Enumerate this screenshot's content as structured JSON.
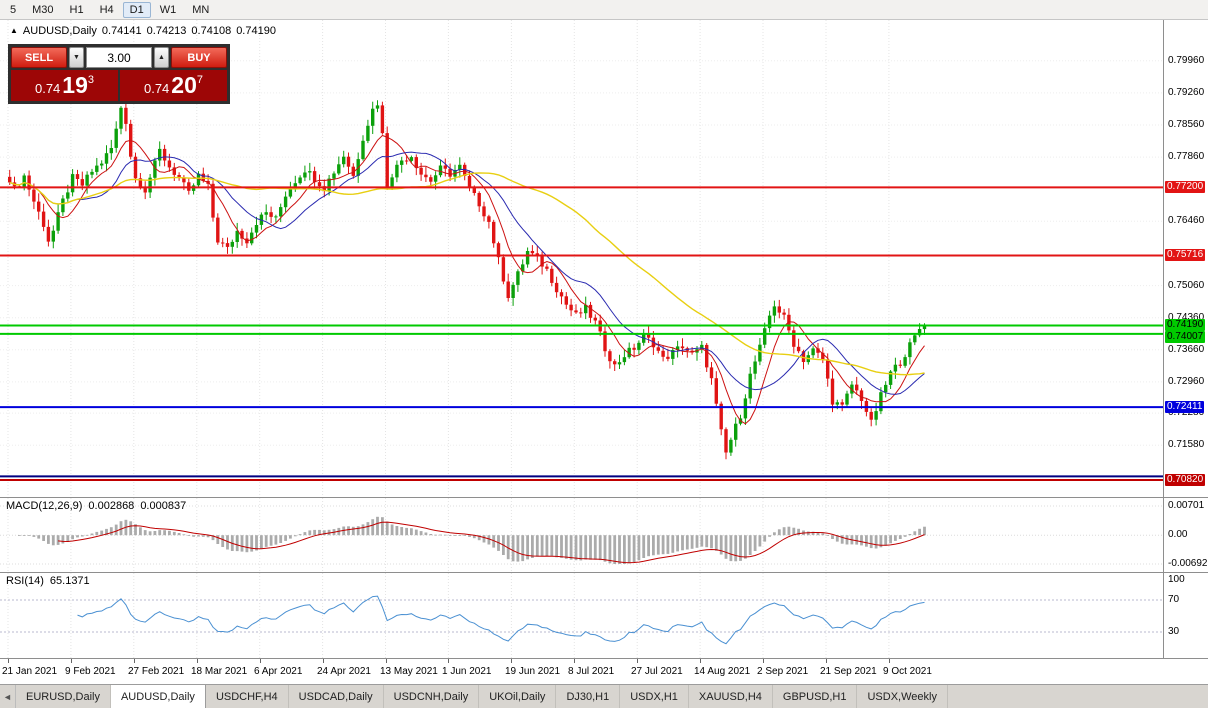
{
  "toolbar": {
    "timeframes": [
      "5",
      "M30",
      "H1",
      "H4",
      "D1",
      "W1",
      "MN"
    ],
    "active": "D1"
  },
  "header": {
    "symbol_icon": "▲",
    "symbol": "AUDUSD,Daily",
    "open": "0.74141",
    "high": "0.74213",
    "low": "0.74108",
    "close": "0.74190"
  },
  "trade_panel": {
    "sell_label": "SELL",
    "buy_label": "BUY",
    "volume": "3.00",
    "step_down_icon": "▼",
    "step_up_icon": "▲",
    "sell_price": {
      "big_prefix": "0.74",
      "big": "19",
      "sup": "3"
    },
    "buy_price": {
      "big_prefix": "0.74",
      "big": "20",
      "sup": "7"
    }
  },
  "chart_data": {
    "type": "candlestick",
    "symbol": "AUDUSD",
    "timeframe": "Daily",
    "current_ohlc": {
      "open": 0.74141,
      "high": 0.74213,
      "low": 0.74108,
      "close": 0.7419
    },
    "candle_count": 190,
    "view_high": 0.8085,
    "view_low": 0.7045,
    "up_color": "#0ba00b",
    "down_color": "#e01414",
    "price_anchors": [
      [
        0,
        0.774
      ],
      [
        1,
        0.7715
      ],
      [
        3,
        0.7745
      ],
      [
        5,
        0.769
      ],
      [
        7,
        0.764
      ],
      [
        8,
        0.7605
      ],
      [
        9,
        0.7625
      ],
      [
        11,
        0.769
      ],
      [
        13,
        0.774
      ],
      [
        15,
        0.7725
      ],
      [
        17,
        0.7755
      ],
      [
        19,
        0.7775
      ],
      [
        21,
        0.7805
      ],
      [
        22,
        0.7845
      ],
      [
        23,
        0.7895
      ],
      [
        24,
        0.7865
      ],
      [
        25,
        0.779
      ],
      [
        26,
        0.774
      ],
      [
        28,
        0.7715
      ],
      [
        30,
        0.777
      ],
      [
        31,
        0.78
      ],
      [
        33,
        0.7765
      ],
      [
        35,
        0.774
      ],
      [
        37,
        0.7705
      ],
      [
        39,
        0.7745
      ],
      [
        41,
        0.772
      ],
      [
        42,
        0.7655
      ],
      [
        43,
        0.7605
      ],
      [
        45,
        0.7585
      ],
      [
        47,
        0.7625
      ],
      [
        49,
        0.7605
      ],
      [
        51,
        0.7645
      ],
      [
        53,
        0.7665
      ],
      [
        55,
        0.765
      ],
      [
        57,
        0.7705
      ],
      [
        59,
        0.7735
      ],
      [
        61,
        0.776
      ],
      [
        63,
        0.774
      ],
      [
        65,
        0.772
      ],
      [
        67,
        0.7755
      ],
      [
        69,
        0.779
      ],
      [
        71,
        0.7745
      ],
      [
        73,
        0.783
      ],
      [
        75,
        0.789
      ],
      [
        76,
        0.7905
      ],
      [
        77,
        0.7835
      ],
      [
        78,
        0.7725
      ],
      [
        79,
        0.775
      ],
      [
        81,
        0.778
      ],
      [
        83,
        0.779
      ],
      [
        85,
        0.775
      ],
      [
        87,
        0.7735
      ],
      [
        89,
        0.776
      ],
      [
        91,
        0.775
      ],
      [
        93,
        0.7765
      ],
      [
        95,
        0.7715
      ],
      [
        97,
        0.7685
      ],
      [
        99,
        0.7645
      ],
      [
        101,
        0.756
      ],
      [
        103,
        0.7485
      ],
      [
        105,
        0.753
      ],
      [
        107,
        0.758
      ],
      [
        109,
        0.7565
      ],
      [
        111,
        0.754
      ],
      [
        113,
        0.75
      ],
      [
        115,
        0.7465
      ],
      [
        117,
        0.744
      ],
      [
        119,
        0.7455
      ],
      [
        121,
        0.7425
      ],
      [
        123,
        0.737
      ],
      [
        125,
        0.733
      ],
      [
        127,
        0.7355
      ],
      [
        129,
        0.737
      ],
      [
        131,
        0.7395
      ],
      [
        133,
        0.738
      ],
      [
        135,
        0.7345
      ],
      [
        137,
        0.736
      ],
      [
        139,
        0.7375
      ],
      [
        141,
        0.7355
      ],
      [
        143,
        0.737
      ],
      [
        145,
        0.73
      ],
      [
        147,
        0.7185
      ],
      [
        148,
        0.714
      ],
      [
        149,
        0.717
      ],
      [
        151,
        0.7225
      ],
      [
        153,
        0.731
      ],
      [
        155,
        0.737
      ],
      [
        157,
        0.744
      ],
      [
        158,
        0.7465
      ],
      [
        160,
        0.7435
      ],
      [
        162,
        0.738
      ],
      [
        164,
        0.7345
      ],
      [
        166,
        0.7365
      ],
      [
        168,
        0.7345
      ],
      [
        170,
        0.7255
      ],
      [
        172,
        0.724
      ],
      [
        174,
        0.729
      ],
      [
        176,
        0.726
      ],
      [
        178,
        0.7205
      ],
      [
        180,
        0.7265
      ],
      [
        182,
        0.7315
      ],
      [
        184,
        0.734
      ],
      [
        186,
        0.7375
      ],
      [
        188,
        0.7412
      ],
      [
        189,
        0.7419
      ]
    ],
    "axis_ticks": [
      0.7996,
      0.7926,
      0.7856,
      0.7786,
      0.7646,
      0.7506,
      0.7436,
      0.7366,
      0.7296,
      0.7228,
      0.7158
    ],
    "level_lines": [
      {
        "price": 0.772,
        "label": "0.77200",
        "color": "#e21414",
        "bg": "#e21414",
        "fg": "#ffffff"
      },
      {
        "price": 0.75716,
        "label": "0.75716",
        "color": "#e21414",
        "bg": "#e21414",
        "fg": "#ffffff"
      },
      {
        "price": 0.7419,
        "label": "0.74190",
        "color": "#00ca00",
        "bg": "#00ca00",
        "fg": "#000000"
      },
      {
        "price": 0.74007,
        "label": "0.74007",
        "color": "#00ca00",
        "bg": "#00ca00",
        "fg": "#000000"
      },
      {
        "price": 0.72411,
        "label": "0.72411",
        "color": "#0000dd",
        "bg": "#0000dd",
        "fg": "#ffffff"
      },
      {
        "price": 0.709,
        "label": null,
        "color": "#000080",
        "bg": null,
        "fg": null
      },
      {
        "price": 0.7082,
        "label": "0.70820",
        "color": "#c00000",
        "bg": "#c00000",
        "fg": "#ffffff"
      }
    ],
    "date_labels": [
      {
        "text": "21 Jan 2021",
        "index": 0
      },
      {
        "text": "9 Feb 2021",
        "index": 13
      },
      {
        "text": "27 Feb 2021",
        "index": 26
      },
      {
        "text": "18 Mar 2021",
        "index": 39
      },
      {
        "text": "6 Apr 2021",
        "index": 52
      },
      {
        "text": "24 Apr 2021",
        "index": 65
      },
      {
        "text": "13 May 2021",
        "index": 78
      },
      {
        "text": "1 Jun 2021",
        "index": 91
      },
      {
        "text": "19 Jun 2021",
        "index": 104
      },
      {
        "text": "8 Jul 2021",
        "index": 117
      },
      {
        "text": "27 Jul 2021",
        "index": 130
      },
      {
        "text": "14 Aug 2021",
        "index": 143
      },
      {
        "text": "2 Sep 2021",
        "index": 156
      },
      {
        "text": "21 Sep 2021",
        "index": 169
      },
      {
        "text": "9 Oct 2021",
        "index": 182
      }
    ],
    "moving_averages": [
      {
        "period": 7,
        "color": "#cc1111",
        "width": 1
      },
      {
        "period": 15,
        "color": "#2a2ab0",
        "width": 1
      },
      {
        "period": 45,
        "color": "#e8cf12",
        "width": 1.4
      }
    ],
    "indicators": {
      "macd": {
        "label": "MACD(12,26,9)",
        "value_main": "0.002868",
        "value_signal": "0.000837",
        "fast": 12,
        "slow": 26,
        "signal": 9,
        "axis_labels": [
          "0.00701",
          "0.00",
          "-0.00692"
        ],
        "axis_values": [
          0.00701,
          0,
          -0.00692
        ],
        "hist_color": "#ababab",
        "signal_color": "#c00000"
      },
      "rsi": {
        "label": "RSI(14)",
        "value": "65.1371",
        "period": 14,
        "levels": [
          100,
          70,
          30
        ],
        "line_color": "#4a90d2"
      }
    }
  },
  "tabs": {
    "scroll_left_icon": "◄",
    "items": [
      "EURUSD,Daily",
      "AUDUSD,Daily",
      "USDCHF,H4",
      "USDCAD,Daily",
      "USDCNH,Daily",
      "UKOil,Daily",
      "DJ30,H1",
      "USDX,H1",
      "XAUUSD,H4",
      "GBPUSD,H1",
      "USDX,Weekly"
    ],
    "active": "AUDUSD,Daily"
  }
}
